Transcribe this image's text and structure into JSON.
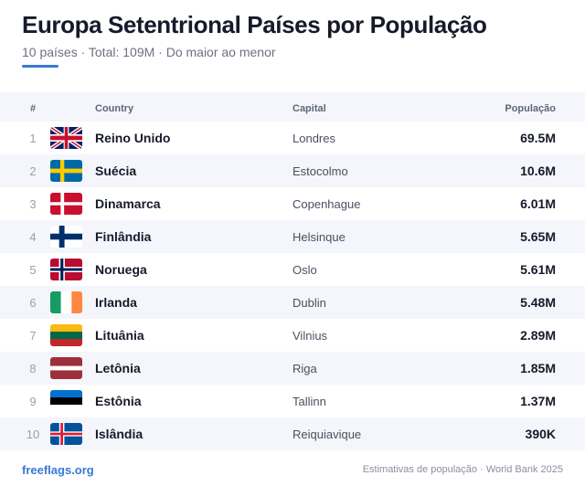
{
  "header": {
    "title": "Europa Setentrional Países por População",
    "subtitle": "10 países · Total: 109M · Do maior ao menor",
    "accent_color": "#3a78d6"
  },
  "table": {
    "columns": {
      "rank": "#",
      "country": "Country",
      "capital": "Capital",
      "population": "População"
    },
    "rows": [
      {
        "rank": "1",
        "flag": "gb-flag-icon",
        "country": "Reino Unido",
        "capital": "Londres",
        "population": "69.5M"
      },
      {
        "rank": "2",
        "flag": "se-flag-icon",
        "country": "Suécia",
        "capital": "Estocolmo",
        "population": "10.6M"
      },
      {
        "rank": "3",
        "flag": "dk-flag-icon",
        "country": "Dinamarca",
        "capital": "Copenhague",
        "population": "6.01M"
      },
      {
        "rank": "4",
        "flag": "fi-flag-icon",
        "country": "Finlândia",
        "capital": "Helsinque",
        "population": "5.65M"
      },
      {
        "rank": "5",
        "flag": "no-flag-icon",
        "country": "Noruega",
        "capital": "Oslo",
        "population": "5.61M"
      },
      {
        "rank": "6",
        "flag": "ie-flag-icon",
        "country": "Irlanda",
        "capital": "Dublin",
        "population": "5.48M"
      },
      {
        "rank": "7",
        "flag": "lt-flag-icon",
        "country": "Lituânia",
        "capital": "Vilnius",
        "population": "2.89M"
      },
      {
        "rank": "8",
        "flag": "lv-flag-icon",
        "country": "Letônia",
        "capital": "Riga",
        "population": "1.85M"
      },
      {
        "rank": "9",
        "flag": "ee-flag-icon",
        "country": "Estônia",
        "capital": "Tallinn",
        "population": "1.37M"
      },
      {
        "rank": "10",
        "flag": "is-flag-icon",
        "country": "Islândia",
        "capital": "Reiquiavique",
        "population": "390K"
      }
    ]
  },
  "footer": {
    "brand": "freeflags.org",
    "note": "Estimativas de população · World Bank 2025"
  }
}
